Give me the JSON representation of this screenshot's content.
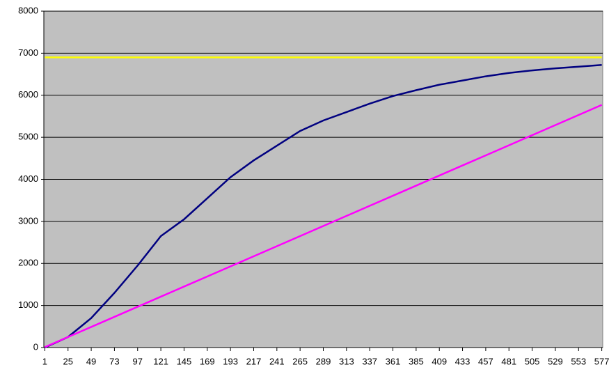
{
  "chart_data": {
    "type": "line",
    "x": [
      1,
      25,
      49,
      73,
      97,
      121,
      145,
      169,
      193,
      217,
      241,
      265,
      289,
      313,
      337,
      361,
      385,
      409,
      433,
      457,
      481,
      505,
      529,
      553,
      577
    ],
    "series": [
      {
        "color": "#ffff00",
        "values": [
          6900,
          6900,
          6900,
          6900,
          6900,
          6900,
          6900,
          6900,
          6900,
          6900,
          6900,
          6900,
          6900,
          6900,
          6900,
          6900,
          6900,
          6900,
          6900,
          6900,
          6900,
          6900,
          6900,
          6900,
          6900
        ]
      },
      {
        "color": "#000080",
        "values": [
          0,
          250,
          700,
          1300,
          1950,
          2650,
          3050,
          3550,
          4050,
          4450,
          4800,
          5150,
          5400,
          5600,
          5800,
          5980,
          6120,
          6250,
          6350,
          6450,
          6530,
          6590,
          6640,
          6680,
          6720
        ]
      },
      {
        "color": "#ff00ff",
        "values": [
          10,
          250,
          490,
          730,
          970,
          1210,
          1450,
          1690,
          1930,
          2170,
          2410,
          2650,
          2890,
          3130,
          3370,
          3610,
          3850,
          4090,
          4330,
          4570,
          4810,
          5050,
          5290,
          5530,
          5770
        ]
      }
    ],
    "xlim": [
      0,
      578
    ],
    "xticks": [
      1,
      25,
      49,
      73,
      97,
      121,
      145,
      169,
      193,
      217,
      241,
      265,
      289,
      313,
      337,
      361,
      385,
      409,
      433,
      457,
      481,
      505,
      529,
      553,
      577
    ],
    "ylim": [
      0,
      8000
    ],
    "yticks": [
      0,
      1000,
      2000,
      3000,
      4000,
      5000,
      6000,
      7000,
      8000
    ],
    "grid": true,
    "plot_background": "#c0c0c0"
  }
}
